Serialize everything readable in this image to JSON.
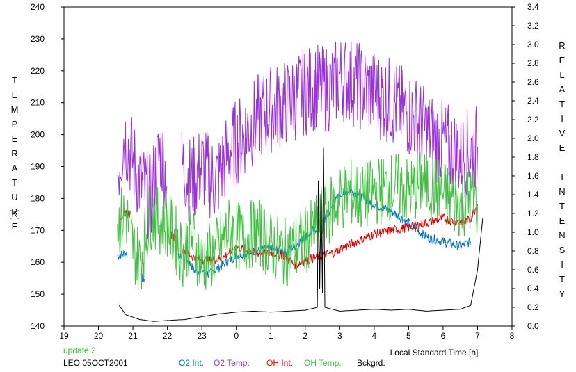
{
  "chart_data": {
    "type": "line",
    "title": "",
    "ylabel_left": "TEMPERATURE",
    "ylabel_left_unit": "[K]",
    "ylabel_right": "RELATIVE INTENSITY",
    "xlabel": "Local Standard Time [h]",
    "xlim": [
      19,
      32
    ],
    "ylim_left": [
      140,
      240
    ],
    "ylim_right": [
      0.0,
      3.4
    ],
    "x_tick_values": [
      19,
      20,
      21,
      22,
      23,
      24,
      25,
      26,
      27,
      28,
      29,
      30,
      31,
      32
    ],
    "x_tick_labels": [
      "19",
      "20",
      "21",
      "22",
      "23",
      "0",
      "1",
      "2",
      "3",
      "4",
      "5",
      "6",
      "7",
      "8"
    ],
    "y_left_ticks": [
      "140",
      "150",
      "160",
      "170",
      "180",
      "190",
      "200",
      "210",
      "220",
      "230",
      "240"
    ],
    "y_right_ticks": [
      "0.0",
      "0.2",
      "0.4",
      "0.6",
      "0.8",
      "1.0",
      "1.2",
      "1.4",
      "1.6",
      "1.8",
      "2.0",
      "2.2",
      "2.4",
      "2.6",
      "2.8",
      "3.0",
      "3.2",
      "3.4"
    ],
    "grid": false,
    "legend_placement": "bottom",
    "annotations": {
      "update": "update 2",
      "site_date": "LEO 05OCT2001"
    },
    "series": [
      {
        "name": "O2 Int.",
        "axis": "right",
        "color": "#0070c8",
        "points": [
          [
            20.55,
            0.75
          ],
          [
            20.8,
            0.78
          ],
          [
            21.3,
            0.5
          ],
          [
            22.4,
            0.75
          ],
          [
            22.6,
            0.7
          ],
          [
            22.8,
            0.58
          ],
          [
            23.0,
            0.6
          ],
          [
            23.2,
            0.55
          ],
          [
            23.6,
            0.65
          ],
          [
            24.0,
            0.75
          ],
          [
            24.5,
            0.8
          ],
          [
            25.0,
            0.82
          ],
          [
            25.5,
            0.8
          ],
          [
            26.0,
            0.95
          ],
          [
            26.5,
            1.1
          ],
          [
            27.0,
            1.4
          ],
          [
            27.3,
            1.45
          ],
          [
            27.6,
            1.38
          ],
          [
            28.0,
            1.3
          ],
          [
            28.5,
            1.22
          ],
          [
            29.0,
            1.1
          ],
          [
            29.5,
            0.95
          ],
          [
            30.0,
            0.9
          ],
          [
            30.5,
            0.85
          ],
          [
            30.8,
            0.9
          ]
        ]
      },
      {
        "name": "O2 Temp.",
        "axis": "left",
        "color": "#9b30d8",
        "points": [
          [
            20.55,
            188
          ],
          [
            20.75,
            200
          ],
          [
            20.9,
            195
          ],
          [
            21.2,
            185
          ],
          [
            21.5,
            180
          ],
          [
            21.8,
            195
          ],
          [
            22.0,
            185
          ],
          [
            22.45,
            190
          ],
          [
            22.7,
            185
          ],
          [
            23.0,
            190
          ],
          [
            23.4,
            185
          ],
          [
            23.8,
            195
          ],
          [
            24.2,
            200
          ],
          [
            24.6,
            205
          ],
          [
            25.0,
            208
          ],
          [
            25.5,
            210
          ],
          [
            25.9,
            213
          ],
          [
            26.3,
            215
          ],
          [
            26.5,
            214
          ],
          [
            26.8,
            215
          ],
          [
            27.0,
            218
          ],
          [
            27.3,
            217
          ],
          [
            27.6,
            215
          ],
          [
            28.0,
            213
          ],
          [
            28.4,
            211
          ],
          [
            28.8,
            208
          ],
          [
            29.2,
            205
          ],
          [
            29.6,
            200
          ],
          [
            30.0,
            197
          ],
          [
            30.3,
            195
          ],
          [
            30.5,
            193
          ],
          [
            30.8,
            195
          ],
          [
            31.0,
            196
          ]
        ]
      },
      {
        "name": "OH Int.",
        "axis": "right",
        "color": "#e00000",
        "points": [
          [
            20.6,
            1.17
          ],
          [
            20.9,
            1.2
          ],
          [
            22.2,
            0.95
          ],
          [
            22.45,
            0.82
          ],
          [
            22.8,
            0.72
          ],
          [
            23.2,
            0.7
          ],
          [
            23.6,
            0.72
          ],
          [
            24.0,
            0.85
          ],
          [
            24.5,
            0.78
          ],
          [
            25.0,
            0.78
          ],
          [
            25.3,
            0.77
          ],
          [
            25.7,
            0.65
          ],
          [
            26.0,
            0.7
          ],
          [
            26.5,
            0.75
          ],
          [
            26.8,
            0.78
          ],
          [
            27.0,
            0.82
          ],
          [
            27.5,
            0.9
          ],
          [
            28.0,
            0.98
          ],
          [
            28.5,
            1.02
          ],
          [
            29.0,
            1.05
          ],
          [
            29.5,
            1.1
          ],
          [
            30.0,
            1.15
          ],
          [
            30.3,
            1.12
          ],
          [
            30.6,
            1.1
          ],
          [
            30.8,
            1.15
          ],
          [
            31.0,
            1.3
          ]
        ]
      },
      {
        "name": "OH Temp.",
        "axis": "left",
        "color": "#40c040",
        "points": [
          [
            20.55,
            172
          ],
          [
            20.8,
            175
          ],
          [
            21.0,
            165
          ],
          [
            21.2,
            160
          ],
          [
            21.5,
            175
          ],
          [
            22.0,
            172
          ],
          [
            22.45,
            163
          ],
          [
            22.7,
            168
          ],
          [
            23.0,
            160
          ],
          [
            23.4,
            163
          ],
          [
            23.8,
            170
          ],
          [
            24.2,
            167
          ],
          [
            24.6,
            170
          ],
          [
            25.0,
            165
          ],
          [
            25.4,
            163
          ],
          [
            25.8,
            165
          ],
          [
            26.0,
            167
          ],
          [
            26.3,
            170
          ],
          [
            26.6,
            175
          ],
          [
            27.0,
            180
          ],
          [
            27.3,
            182
          ],
          [
            27.6,
            180
          ],
          [
            28.0,
            182
          ],
          [
            28.3,
            183
          ],
          [
            28.6,
            184
          ],
          [
            29.0,
            182
          ],
          [
            29.4,
            185
          ],
          [
            29.8,
            183
          ],
          [
            30.2,
            180
          ],
          [
            30.5,
            178
          ],
          [
            30.8,
            180
          ],
          [
            31.0,
            178
          ]
        ]
      },
      {
        "name": "Bckgrd.",
        "axis": "right",
        "color": "#000000",
        "points": [
          [
            20.6,
            0.22
          ],
          [
            20.8,
            0.12
          ],
          [
            21.2,
            0.07
          ],
          [
            21.6,
            0.05
          ],
          [
            22.0,
            0.06
          ],
          [
            22.5,
            0.07
          ],
          [
            23.0,
            0.1
          ],
          [
            23.5,
            0.13
          ],
          [
            24.0,
            0.15
          ],
          [
            24.5,
            0.16
          ],
          [
            25.0,
            0.15
          ],
          [
            25.5,
            0.16
          ],
          [
            26.0,
            0.17
          ],
          [
            26.35,
            0.2
          ],
          [
            26.38,
            1.55
          ],
          [
            26.42,
            0.4
          ],
          [
            26.46,
            1.5
          ],
          [
            26.5,
            0.35
          ],
          [
            26.53,
            1.9
          ],
          [
            26.57,
            0.2
          ],
          [
            27.0,
            0.16
          ],
          [
            27.5,
            0.17
          ],
          [
            28.0,
            0.18
          ],
          [
            28.5,
            0.17
          ],
          [
            29.0,
            0.18
          ],
          [
            29.5,
            0.16
          ],
          [
            30.0,
            0.17
          ],
          [
            30.5,
            0.18
          ],
          [
            30.8,
            0.22
          ],
          [
            31.0,
            0.6
          ],
          [
            31.15,
            1.15
          ]
        ]
      }
    ]
  }
}
